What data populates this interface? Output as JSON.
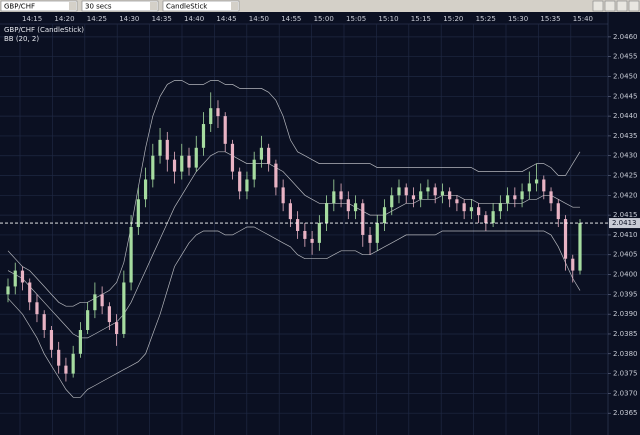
{
  "toolbar": {
    "symbol": "GBP/CHF",
    "interval": "30 secs",
    "chart_style": "CandleStick"
  },
  "chart_data": {
    "type": "candlestick",
    "legend": [
      "GBP/CHF (CandleStick)",
      "BB (20, 2)"
    ],
    "up_color": "#a6dca0",
    "down_color": "#e9b3c4",
    "band_color": "#b4b6bc",
    "grid": true,
    "time_labels": [
      "14:15",
      "14:20",
      "14:25",
      "14:30",
      "14:35",
      "14:40",
      "14:45",
      "14:50",
      "14:55",
      "15:00",
      "15:05",
      "15:10",
      "15:15",
      "15:20",
      "15:25",
      "15:30",
      "15:35",
      "15:40"
    ],
    "ylim": [
      2.036,
      2.0463
    ],
    "yticks": [
      2.0365,
      {
        "value": 2.037,
        "label": "2.0370"
      },
      2.0375,
      {
        "value": 2.038,
        "label": "2.0380"
      },
      2.0385,
      {
        "value": 2.039,
        "label": "2.0390"
      },
      2.0395,
      {
        "value": 2.04,
        "label": "2.0400"
      },
      2.0405,
      {
        "value": 2.041,
        "label": "2.0410"
      },
      2.0415,
      {
        "value": 2.042,
        "label": "2.0420"
      },
      2.0425,
      {
        "value": 2.043,
        "label": "2.0430"
      },
      2.0435,
      {
        "value": 2.044,
        "label": "2.0440"
      },
      2.0445,
      {
        "value": 2.045,
        "label": "2.0450"
      },
      2.0455,
      {
        "value": 2.046,
        "label": "2.0460"
      }
    ],
    "last_price": 2.0413,
    "candles": {
      "open": [
        2.0395,
        2.0397,
        2.0401,
        2.0398,
        2.0393,
        2.039,
        2.0386,
        2.0381,
        2.0377,
        2.0375,
        2.038,
        2.0386,
        2.0391,
        2.0395,
        2.0392,
        2.0388,
        2.0385,
        2.0398,
        2.0412,
        2.0419,
        2.0424,
        2.043,
        2.0434,
        2.0429,
        2.0426,
        2.043,
        2.0427,
        2.0432,
        2.0438,
        2.0442,
        2.044,
        2.0433,
        2.0426,
        2.0421,
        2.0424,
        2.0429,
        2.0432,
        2.0428,
        2.0422,
        2.0418,
        2.0414,
        2.0411,
        2.0409,
        2.0408,
        2.0413,
        2.0418,
        2.0421,
        2.0419,
        2.0416,
        2.0418,
        2.041,
        2.0408,
        2.0413,
        2.0417,
        2.042,
        2.0422,
        2.042,
        2.0419,
        2.0421,
        2.0422,
        2.042,
        2.0421,
        2.0419,
        2.0418,
        2.0416,
        2.0417,
        2.0415,
        2.0413,
        2.0416,
        2.0418,
        2.042,
        2.0419,
        2.0421,
        2.0423,
        2.0424,
        2.0421,
        2.0418,
        2.0414,
        2.0404,
        2.0401
      ],
      "high": [
        2.0399,
        2.0403,
        2.0402,
        2.0399,
        2.0395,
        2.0391,
        2.0387,
        2.0383,
        2.0379,
        2.0382,
        2.0388,
        2.0393,
        2.0398,
        2.0397,
        2.0393,
        2.039,
        2.0401,
        2.0415,
        2.0422,
        2.0427,
        2.0433,
        2.0437,
        2.0436,
        2.0431,
        2.0433,
        2.0432,
        2.0435,
        2.0441,
        2.0446,
        2.0444,
        2.0441,
        2.0434,
        2.0427,
        2.0426,
        2.0431,
        2.0435,
        2.0433,
        2.0429,
        2.0424,
        2.0419,
        2.0416,
        2.0413,
        2.0411,
        2.0415,
        2.042,
        2.0424,
        2.0423,
        2.0421,
        2.042,
        2.0419,
        2.0412,
        2.0415,
        2.0419,
        2.0422,
        2.0424,
        2.0423,
        2.0422,
        2.0423,
        2.0424,
        2.0423,
        2.0423,
        2.0422,
        2.042,
        2.0419,
        2.0419,
        2.0418,
        2.0416,
        2.0418,
        2.042,
        2.0422,
        2.0422,
        2.0423,
        2.0426,
        2.0428,
        2.0425,
        2.0422,
        2.0419,
        2.0415,
        2.0405,
        2.0414
      ],
      "low": [
        2.0393,
        2.0395,
        2.0396,
        2.0391,
        2.0388,
        2.0384,
        2.0379,
        2.0375,
        2.0373,
        2.0374,
        2.0379,
        2.0385,
        2.0389,
        2.039,
        2.0386,
        2.0382,
        2.0384,
        2.0396,
        2.041,
        2.0417,
        2.0422,
        2.0428,
        2.0426,
        2.0423,
        2.0424,
        2.0425,
        2.0426,
        2.043,
        2.0436,
        2.0437,
        2.0431,
        2.0424,
        2.0419,
        2.0419,
        2.0422,
        2.0427,
        2.0426,
        2.042,
        2.0416,
        2.0412,
        2.0409,
        2.0407,
        2.0405,
        2.0406,
        2.0411,
        2.0416,
        2.0417,
        2.0414,
        2.0414,
        2.0407,
        2.0405,
        2.0406,
        2.0411,
        2.0415,
        2.0418,
        2.0418,
        2.0417,
        2.0417,
        2.0419,
        2.0418,
        2.0418,
        2.0417,
        2.0416,
        2.0414,
        2.0414,
        2.0413,
        2.0411,
        2.0412,
        2.0414,
        2.0416,
        2.0417,
        2.0417,
        2.0419,
        2.0421,
        2.0419,
        2.0416,
        2.0412,
        2.0401,
        2.0398,
        2.04
      ],
      "close": [
        2.0397,
        2.0401,
        2.0398,
        2.0393,
        2.039,
        2.0386,
        2.0381,
        2.0377,
        2.0375,
        2.038,
        2.0386,
        2.0391,
        2.0395,
        2.0392,
        2.0388,
        2.0385,
        2.0398,
        2.0412,
        2.0419,
        2.0424,
        2.043,
        2.0434,
        2.0429,
        2.0426,
        2.043,
        2.0427,
        2.0432,
        2.0438,
        2.0442,
        2.044,
        2.0433,
        2.0426,
        2.0421,
        2.0424,
        2.0429,
        2.0432,
        2.0428,
        2.0422,
        2.0418,
        2.0414,
        2.0411,
        2.0409,
        2.0408,
        2.0413,
        2.0418,
        2.0421,
        2.0419,
        2.0416,
        2.0418,
        2.041,
        2.0408,
        2.0413,
        2.0417,
        2.042,
        2.0422,
        2.042,
        2.0419,
        2.0421,
        2.0422,
        2.042,
        2.0421,
        2.0419,
        2.0418,
        2.0416,
        2.0417,
        2.0415,
        2.0413,
        2.0416,
        2.0418,
        2.042,
        2.0419,
        2.0421,
        2.0423,
        2.0424,
        2.0421,
        2.0418,
        2.0414,
        2.0404,
        2.0401,
        2.0413
      ]
    },
    "bands": {
      "upper": [
        2.0406,
        2.0404,
        2.0402,
        2.0401,
        2.0399,
        2.0397,
        2.0395,
        2.0393,
        2.0392,
        2.0392,
        2.0393,
        2.0393,
        2.0394,
        2.0395,
        2.0396,
        2.0398,
        2.0403,
        2.0412,
        2.0422,
        2.0432,
        2.044,
        2.0445,
        2.0448,
        2.0449,
        2.0449,
        2.0448,
        2.0448,
        2.0448,
        2.0449,
        2.0449,
        2.0448,
        2.0448,
        2.0447,
        2.0447,
        2.0447,
        2.0447,
        2.0446,
        2.0444,
        2.044,
        2.0434,
        2.0431,
        2.043,
        2.0429,
        2.0428,
        2.0428,
        2.0428,
        2.0428,
        2.0428,
        2.0428,
        2.0428,
        2.0428,
        2.0427,
        2.0427,
        2.0427,
        2.0427,
        2.0427,
        2.0427,
        2.0427,
        2.0427,
        2.0427,
        2.0427,
        2.0427,
        2.0427,
        2.0427,
        2.0427,
        2.0426,
        2.0426,
        2.0426,
        2.0426,
        2.0426,
        2.0426,
        2.0426,
        2.0427,
        2.0428,
        2.0428,
        2.0427,
        2.0425,
        2.0425,
        2.0428,
        2.0431
      ],
      "middle": [
        2.0401,
        2.04,
        2.0399,
        2.0397,
        2.0395,
        2.0393,
        2.0391,
        2.0389,
        2.0387,
        2.0385,
        2.0384,
        2.0384,
        2.0385,
        2.0386,
        2.0387,
        2.0388,
        2.039,
        2.0393,
        2.0397,
        2.0401,
        2.0405,
        2.0409,
        2.0413,
        2.0417,
        2.042,
        2.0423,
        2.0426,
        2.0428,
        2.043,
        2.0431,
        2.0431,
        2.043,
        2.0429,
        2.0428,
        2.0428,
        2.0428,
        2.0428,
        2.0427,
        2.0426,
        2.0424,
        2.0422,
        2.042,
        2.0419,
        2.0418,
        2.0418,
        2.0418,
        2.0418,
        2.0418,
        2.0417,
        2.0416,
        2.0415,
        2.0415,
        2.0415,
        2.0416,
        2.0417,
        2.0418,
        2.0418,
        2.0419,
        2.0419,
        2.0419,
        2.042,
        2.042,
        2.042,
        2.0419,
        2.0419,
        2.0418,
        2.0418,
        2.0418,
        2.0418,
        2.0418,
        2.0418,
        2.0418,
        2.0419,
        2.0419,
        2.042,
        2.042,
        2.0419,
        2.0418,
        2.0417,
        2.0417
      ],
      "lower": [
        2.0394,
        2.0392,
        2.039,
        2.0387,
        2.0384,
        2.038,
        2.0377,
        2.0374,
        2.0371,
        2.0369,
        2.0369,
        2.0371,
        2.0372,
        2.0373,
        2.0374,
        2.0375,
        2.0376,
        2.0377,
        2.0378,
        2.038,
        2.0385,
        2.039,
        2.0396,
        2.0402,
        2.0405,
        2.0408,
        2.041,
        2.0411,
        2.0411,
        2.0411,
        2.041,
        2.041,
        2.0411,
        2.0412,
        2.0412,
        2.0411,
        2.041,
        2.0409,
        2.0408,
        2.0407,
        2.0405,
        2.0404,
        2.0404,
        2.0404,
        2.0404,
        2.0405,
        2.0406,
        2.0406,
        2.0406,
        2.0405,
        2.0405,
        2.0406,
        2.0407,
        2.0408,
        2.0409,
        2.041,
        2.041,
        2.041,
        2.041,
        2.041,
        2.0411,
        2.0411,
        2.0411,
        2.0411,
        2.0411,
        2.0411,
        2.0411,
        2.0411,
        2.0411,
        2.0411,
        2.0411,
        2.0411,
        2.0411,
        2.0411,
        2.0411,
        2.041,
        2.0407,
        2.0403,
        2.0399,
        2.0396
      ]
    }
  }
}
